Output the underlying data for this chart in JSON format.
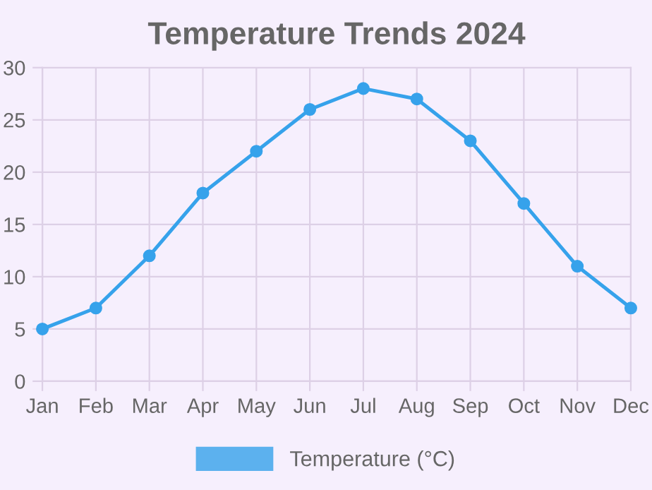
{
  "chart_data": {
    "type": "line",
    "title": "Temperature Trends 2024",
    "categories": [
      "Jan",
      "Feb",
      "Mar",
      "Apr",
      "May",
      "Jun",
      "Jul",
      "Aug",
      "Sep",
      "Oct",
      "Nov",
      "Dec"
    ],
    "series": [
      {
        "name": "Temperature (°C)",
        "color": "#36a2eb",
        "values": [
          5,
          7,
          12,
          18,
          22,
          26,
          28,
          27,
          23,
          17,
          11,
          7
        ]
      }
    ],
    "ylim": [
      0,
      30
    ],
    "yticks": [
      0,
      5,
      10,
      15,
      20,
      25,
      30
    ],
    "grid": true,
    "legend": "bottom",
    "marker": "circle",
    "line_style": "solid"
  }
}
